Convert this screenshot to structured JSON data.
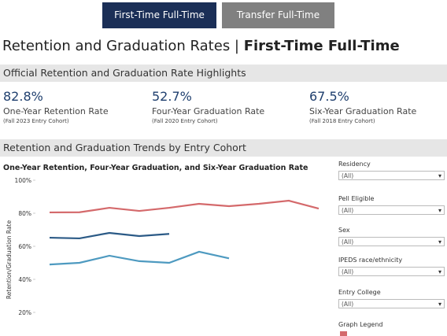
{
  "tabs": [
    "First-Time Full-Time",
    "Transfer Full-Time"
  ],
  "title": {
    "main": "Retention and Graduation Rates |",
    "sub": "First-Time Full-Time"
  },
  "highlights": {
    "heading": "Official Retention and Graduation Rate Highlights",
    "items": [
      {
        "value": "82.8%",
        "label": "One-Year Retention Rate",
        "cohort": "(Fall 2023 Entry Cohort)"
      },
      {
        "value": "52.7%",
        "label": "Four-Year Graduation Rate",
        "cohort": "(Fall 2020 Entry Cohort)"
      },
      {
        "value": "67.5%",
        "label": "Six-Year Graduation Rate",
        "cohort": "(Fall 2018 Entry Cohort)"
      }
    ]
  },
  "trends": {
    "heading": "Retention and Graduation Trends by Entry Cohort"
  },
  "chart_data": {
    "type": "line",
    "title": "One-Year Retention, Four-Year Graduation, and Six-Year Graduation Rate",
    "y_label": "Retention/Graduation Rate",
    "categories": [
      null,
      null,
      null,
      null,
      null,
      null,
      null,
      null,
      null,
      null
    ],
    "series": [
      {
        "color": "#d4696b",
        "values": [
          80.5,
          80.6,
          83.3,
          81.4,
          83.3,
          85.7,
          84.3,
          85.7,
          87.6,
          82.8
        ]
      },
      {
        "color": "#2b5a86",
        "values": [
          65.2,
          64.8,
          68.1,
          66.2,
          67.5,
          null,
          null,
          null,
          null,
          null
        ]
      },
      {
        "color": "#4e9ac0",
        "values": [
          49.0,
          50.0,
          54.3,
          51.0,
          50.0,
          56.7,
          52.7,
          null,
          null,
          null
        ]
      }
    ],
    "ylim": [
      0,
      100
    ],
    "yticks": [
      {
        "value": 20,
        "label": "20%"
      },
      {
        "value": 40,
        "label": "40%"
      },
      {
        "value": 60,
        "label": "60%"
      },
      {
        "value": 80,
        "label": "80%"
      },
      {
        "value": 100,
        "label": "100%"
      }
    ],
    "grid": false
  },
  "filters": [
    {
      "label": "Residency",
      "value": "(All)"
    },
    {
      "label": "Pell Eligible",
      "value": "(All)"
    },
    {
      "label": "Sex",
      "value": "(All)"
    },
    {
      "label": "IPEDS race/ethnicity",
      "value": "(All)"
    },
    {
      "label": "Entry College",
      "value": "(All)"
    }
  ],
  "legend_title": "Graph Legend"
}
